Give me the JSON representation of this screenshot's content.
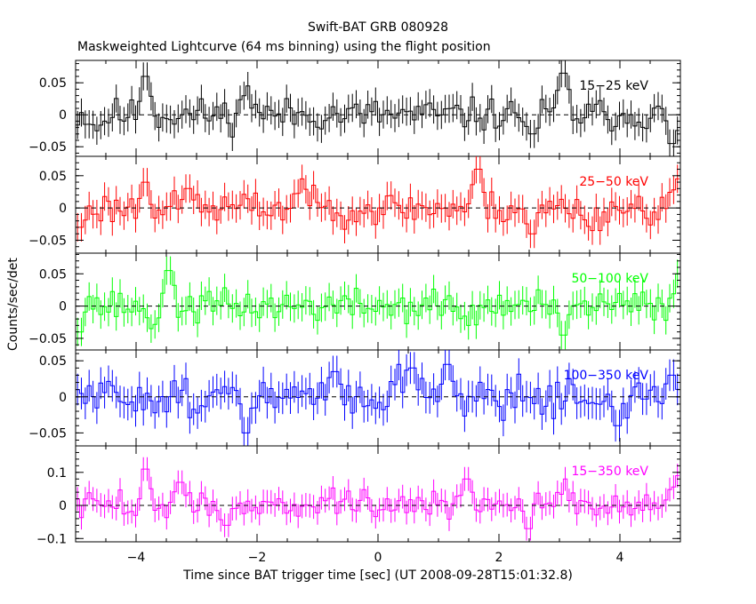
{
  "title": "Swift-BAT GRB 080928",
  "subtitle": "Maskweighted Lightcurve (64 ms binning) using the flight position",
  "chart_data": {
    "type": "line",
    "subtype": "step-with-errorbars",
    "xlabel": "Time since BAT trigger time [sec] (UT 2008-09-28T15:01:32.8)",
    "ylabel": "Counts/sec/det",
    "xlim": [
      -5,
      5
    ],
    "xticks": [
      -4,
      -2,
      0,
      2,
      4
    ],
    "xtick_labels": [
      "−4",
      "−2",
      "0",
      "2",
      "4"
    ],
    "bin_width": 0.064,
    "reference_line": 0,
    "panels": [
      {
        "name": "15-25 keV",
        "label": "15−25 keV",
        "color": "#000000",
        "ylim": [
          -0.065,
          0.085
        ],
        "yticks": [
          -0.05,
          0,
          0.05
        ],
        "ytick_labels": [
          "−0.05",
          "0",
          "0.05"
        ],
        "error": 0.022,
        "seed": 11,
        "features": [
          {
            "x": -3.85,
            "y": 0.06
          },
          {
            "x": -2.15,
            "y": 0.045
          },
          {
            "x": 3.05,
            "y": 0.065
          },
          {
            "x": 4.85,
            "y": -0.045
          },
          {
            "x": -4.65,
            "y": -0.025
          },
          {
            "x": 2.55,
            "y": -0.03
          }
        ]
      },
      {
        "name": "25-50 keV",
        "label": "25−50 keV",
        "color": "#ff0000",
        "ylim": [
          -0.07,
          0.08
        ],
        "yticks": [
          -0.05,
          0,
          0.05
        ],
        "ytick_labels": [
          "−0.05",
          "0",
          "0.05"
        ],
        "error": 0.022,
        "seed": 23,
        "features": [
          {
            "x": -3.85,
            "y": 0.04
          },
          {
            "x": -3.15,
            "y": 0.03
          },
          {
            "x": -1.25,
            "y": 0.045
          },
          {
            "x": 1.65,
            "y": 0.06
          },
          {
            "x": 3.55,
            "y": -0.035
          },
          {
            "x": 4.95,
            "y": 0.045
          },
          {
            "x": -4.95,
            "y": -0.03
          },
          {
            "x": 2.55,
            "y": -0.04
          }
        ]
      },
      {
        "name": "50-100 keV",
        "label": "50−100 keV",
        "color": "#00ff00",
        "ylim": [
          -0.068,
          0.082
        ],
        "yticks": [
          -0.05,
          0,
          0.05
        ],
        "ytick_labels": [
          "−0.05",
          "0",
          "0.05"
        ],
        "error": 0.022,
        "seed": 37,
        "features": [
          {
            "x": -3.45,
            "y": 0.055
          },
          {
            "x": -4.9,
            "y": 0.04
          },
          {
            "x": -4.95,
            "y": -0.04
          },
          {
            "x": 3.05,
            "y": -0.045
          },
          {
            "x": 4.95,
            "y": 0.05
          },
          {
            "x": 1.5,
            "y": -0.03
          },
          {
            "x": -3.75,
            "y": -0.035
          }
        ]
      },
      {
        "name": "100-350 keV",
        "label": "100−350 keV",
        "color": "#0000ff",
        "ylim": [
          -0.068,
          0.065
        ],
        "yticks": [
          -0.05,
          0,
          0.05
        ],
        "ytick_labels": [
          "−0.05",
          "0",
          "0.05"
        ],
        "error": 0.022,
        "seed": 51,
        "features": [
          {
            "x": -2.2,
            "y": -0.05
          },
          {
            "x": 0.35,
            "y": 0.045
          },
          {
            "x": 0.55,
            "y": 0.04
          },
          {
            "x": 1.15,
            "y": 0.045
          },
          {
            "x": -0.7,
            "y": 0.035
          },
          {
            "x": 3.95,
            "y": -0.04
          },
          {
            "x": 4.85,
            "y": 0.03
          }
        ]
      },
      {
        "name": "15-350 keV",
        "label": "15−350 keV",
        "color": "#ff00ff",
        "ylim": [
          -0.11,
          0.18
        ],
        "yticks": [
          -0.1,
          0,
          0.1
        ],
        "ytick_labels": [
          "−0.1",
          "0",
          "0.1"
        ],
        "error": 0.036,
        "seed": 73,
        "features": [
          {
            "x": -3.85,
            "y": 0.11
          },
          {
            "x": -3.25,
            "y": 0.07
          },
          {
            "x": 3.1,
            "y": 0.08
          },
          {
            "x": 4.95,
            "y": 0.09
          },
          {
            "x": -2.5,
            "y": -0.06
          },
          {
            "x": 2.5,
            "y": -0.07
          },
          {
            "x": 1.45,
            "y": 0.08
          }
        ]
      }
    ]
  }
}
